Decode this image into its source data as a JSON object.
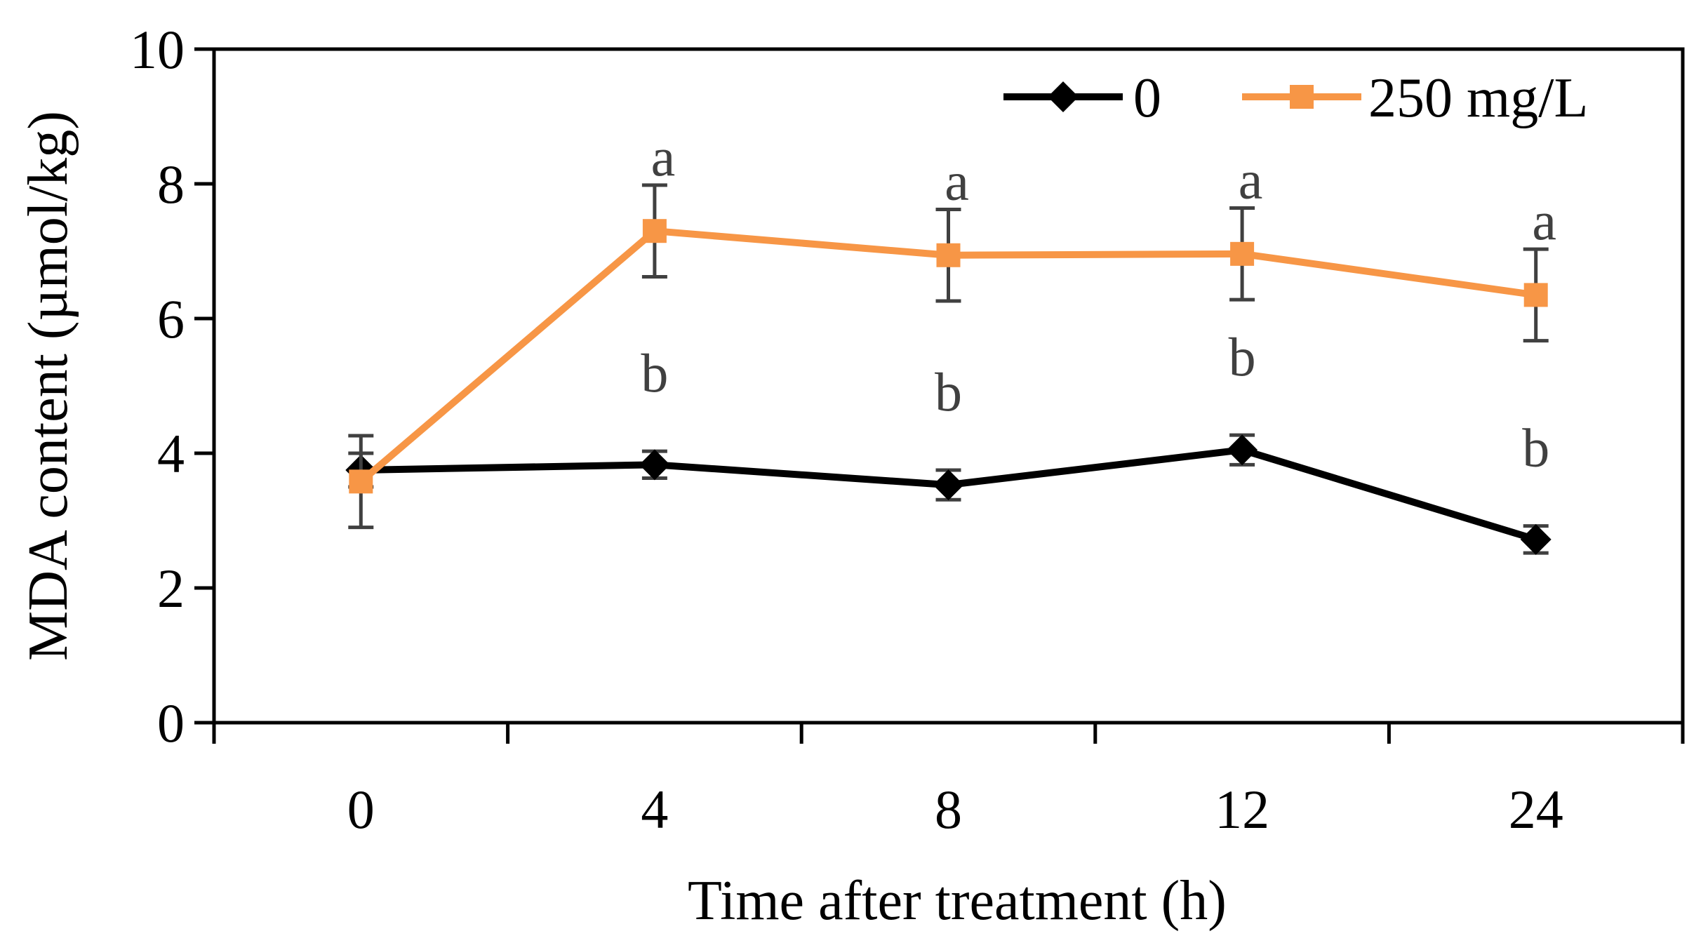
{
  "chart_data": {
    "type": "line",
    "title": "",
    "xlabel": "Time after treatment (h)",
    "ylabel": "MDA content (µmol/kg)",
    "categories": [
      "0",
      "4",
      "8",
      "12",
      "24"
    ],
    "ylim": [
      0,
      10
    ],
    "yticks": [
      "0",
      "2",
      "4",
      "6",
      "8",
      "10"
    ],
    "grid": false,
    "legend_position": "top-right",
    "series": [
      {
        "name": "0",
        "color": "#000000",
        "marker": "diamond",
        "values": [
          3.75,
          3.83,
          3.53,
          4.05,
          2.72
        ],
        "errors": [
          0.25,
          0.2,
          0.22,
          0.22,
          0.2
        ],
        "letters": [
          "",
          "b",
          "b",
          "b",
          "b"
        ]
      },
      {
        "name": "250 mg/L",
        "color": "#F79646",
        "marker": "square",
        "values": [
          3.58,
          7.3,
          6.94,
          6.96,
          6.35
        ],
        "errors": [
          0.68,
          0.68,
          0.68,
          0.68,
          0.68
        ],
        "letters": [
          "",
          "a",
          "a",
          "a",
          "a"
        ]
      }
    ],
    "error_bar_color": "#404040"
  }
}
